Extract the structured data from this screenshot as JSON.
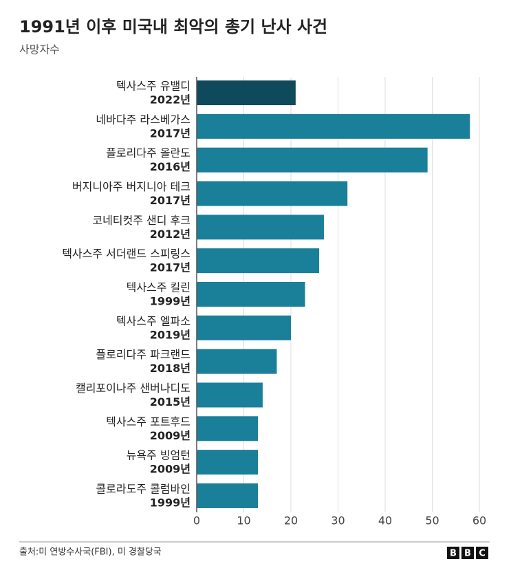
{
  "chart_data": {
    "type": "hbar",
    "title": "1991년 이후 미국내 최악의 총기 난사 사건",
    "subtitle": "사망자수",
    "categories": [
      "텍사스주 유밸디",
      "네바다주 라스베가스",
      "플로리다주 올란도",
      "버지니아주 버지니아 테크",
      "코네티컷주 샌디 후크",
      "텍사스주 서더랜드 스피링스",
      "텍사스주 킬린",
      "텍사스주 엘파소",
      "플로리다주 파크랜드",
      "캘리포이나주 샌버나디도",
      "텍사스주 포트후드",
      "뉴욕주 빙엄턴",
      "콜로라도주 콜럼바인"
    ],
    "years": [
      "2022년",
      "2017년",
      "2016년",
      "2017년",
      "2012년",
      "2017년",
      "1999년",
      "2019년",
      "2018년",
      "2015년",
      "2009년",
      "2009년",
      "1999년"
    ],
    "values": [
      21,
      58,
      49,
      32,
      27,
      26,
      23,
      20,
      17,
      14,
      13,
      13,
      13
    ],
    "colors": [
      "#0e4a5c",
      "#1a7f99",
      "#1a7f99",
      "#1a7f99",
      "#1a7f99",
      "#1a7f99",
      "#1a7f99",
      "#1a7f99",
      "#1a7f99",
      "#1a7f99",
      "#1a7f99",
      "#1a7f99",
      "#1a7f99"
    ],
    "xlim": [
      0,
      60
    ],
    "xticks": [
      0,
      10,
      20,
      30,
      40,
      50,
      60
    ],
    "grid": true,
    "source": "출처:미 연방수사국(FBI), 미 경찰당국",
    "logo": [
      "B",
      "B",
      "C"
    ]
  }
}
